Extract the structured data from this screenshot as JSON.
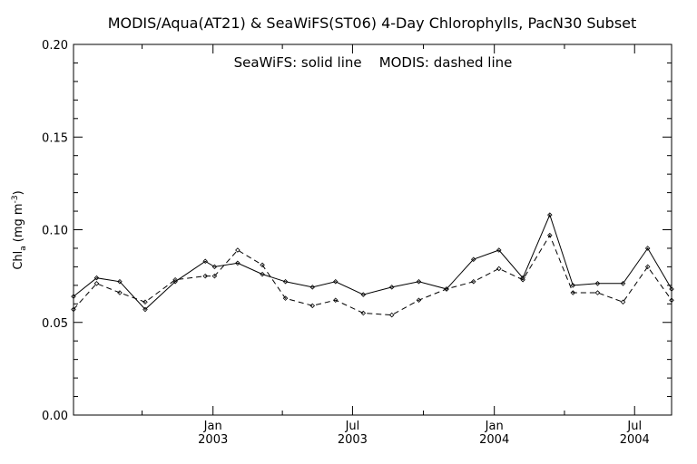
{
  "chart_data": {
    "type": "line",
    "title": "MODIS/Aqua(AT21) & SeaWiFS(ST06) 4-Day Chlorophylls, PacN30 Subset",
    "annotation": "SeaWiFS: solid line    MODIS: dashed line",
    "ylabel_main": "Chl",
    "ylabel_sub": "a",
    "ylabel_unit_open": "(mg m",
    "ylabel_unit_sup": "-3",
    "ylabel_unit_close": ")",
    "ylim": [
      0.0,
      0.2
    ],
    "y_ticks": [
      "0.00",
      "0.05",
      "0.10",
      "0.15",
      "0.20"
    ],
    "xlim": [
      "2002-07-04",
      "2004-08-18"
    ],
    "x_ticks": [
      {
        "month": "Jan",
        "year": "2003",
        "date": "2003-01-01"
      },
      {
        "month": "Jul",
        "year": "2003",
        "date": "2003-07-01"
      },
      {
        "month": "Jan",
        "year": "2004",
        "date": "2004-01-01"
      },
      {
        "month": "Jul",
        "year": "2004",
        "date": "2004-07-01"
      }
    ],
    "grid": false,
    "series": [
      {
        "name": "SeaWiFS",
        "line_style": "solid",
        "color": "#000000",
        "points": [
          {
            "x": "2002-07-04",
            "y": 0.064
          },
          {
            "x": "2002-08-03",
            "y": 0.074
          },
          {
            "x": "2002-09-02",
            "y": 0.072
          },
          {
            "x": "2002-10-05",
            "y": 0.057
          },
          {
            "x": "2002-11-13",
            "y": 0.072
          },
          {
            "x": "2002-12-22",
            "y": 0.083
          },
          {
            "x": "2003-01-03",
            "y": 0.08
          },
          {
            "x": "2003-02-02",
            "y": 0.082
          },
          {
            "x": "2003-03-06",
            "y": 0.076
          },
          {
            "x": "2003-04-05",
            "y": 0.072
          },
          {
            "x": "2003-05-10",
            "y": 0.069
          },
          {
            "x": "2003-06-09",
            "y": 0.072
          },
          {
            "x": "2003-07-15",
            "y": 0.065
          },
          {
            "x": "2003-08-21",
            "y": 0.069
          },
          {
            "x": "2003-09-25",
            "y": 0.072
          },
          {
            "x": "2003-10-31",
            "y": 0.068
          },
          {
            "x": "2003-12-05",
            "y": 0.084
          },
          {
            "x": "2004-01-07",
            "y": 0.089
          },
          {
            "x": "2004-02-07",
            "y": 0.074
          },
          {
            "x": "2004-03-13",
            "y": 0.108
          },
          {
            "x": "2004-04-12",
            "y": 0.07
          },
          {
            "x": "2004-05-14",
            "y": 0.071
          },
          {
            "x": "2004-06-16",
            "y": 0.071
          },
          {
            "x": "2004-07-18",
            "y": 0.09
          },
          {
            "x": "2004-08-18",
            "y": 0.068
          }
        ]
      },
      {
        "name": "MODIS",
        "line_style": "dashed",
        "color": "#000000",
        "points": [
          {
            "x": "2002-07-04",
            "y": 0.057
          },
          {
            "x": "2002-08-03",
            "y": 0.071
          },
          {
            "x": "2002-09-02",
            "y": 0.066
          },
          {
            "x": "2002-10-05",
            "y": 0.061
          },
          {
            "x": "2002-11-13",
            "y": 0.073
          },
          {
            "x": "2002-12-22",
            "y": 0.075
          },
          {
            "x": "2003-01-03",
            "y": 0.075
          },
          {
            "x": "2003-02-02",
            "y": 0.089
          },
          {
            "x": "2003-03-06",
            "y": 0.081
          },
          {
            "x": "2003-04-05",
            "y": 0.063
          },
          {
            "x": "2003-05-10",
            "y": 0.059
          },
          {
            "x": "2003-06-09",
            "y": 0.062
          },
          {
            "x": "2003-07-15",
            "y": 0.055
          },
          {
            "x": "2003-08-21",
            "y": 0.054
          },
          {
            "x": "2003-09-25",
            "y": 0.062
          },
          {
            "x": "2003-10-31",
            "y": 0.068
          },
          {
            "x": "2003-12-05",
            "y": 0.072
          },
          {
            "x": "2004-01-07",
            "y": 0.079
          },
          {
            "x": "2004-02-07",
            "y": 0.073
          },
          {
            "x": "2004-03-13",
            "y": 0.097
          },
          {
            "x": "2004-04-12",
            "y": 0.066
          },
          {
            "x": "2004-05-14",
            "y": 0.066
          },
          {
            "x": "2004-06-16",
            "y": 0.061
          },
          {
            "x": "2004-07-18",
            "y": 0.08
          },
          {
            "x": "2004-08-18",
            "y": 0.062
          }
        ]
      }
    ]
  }
}
